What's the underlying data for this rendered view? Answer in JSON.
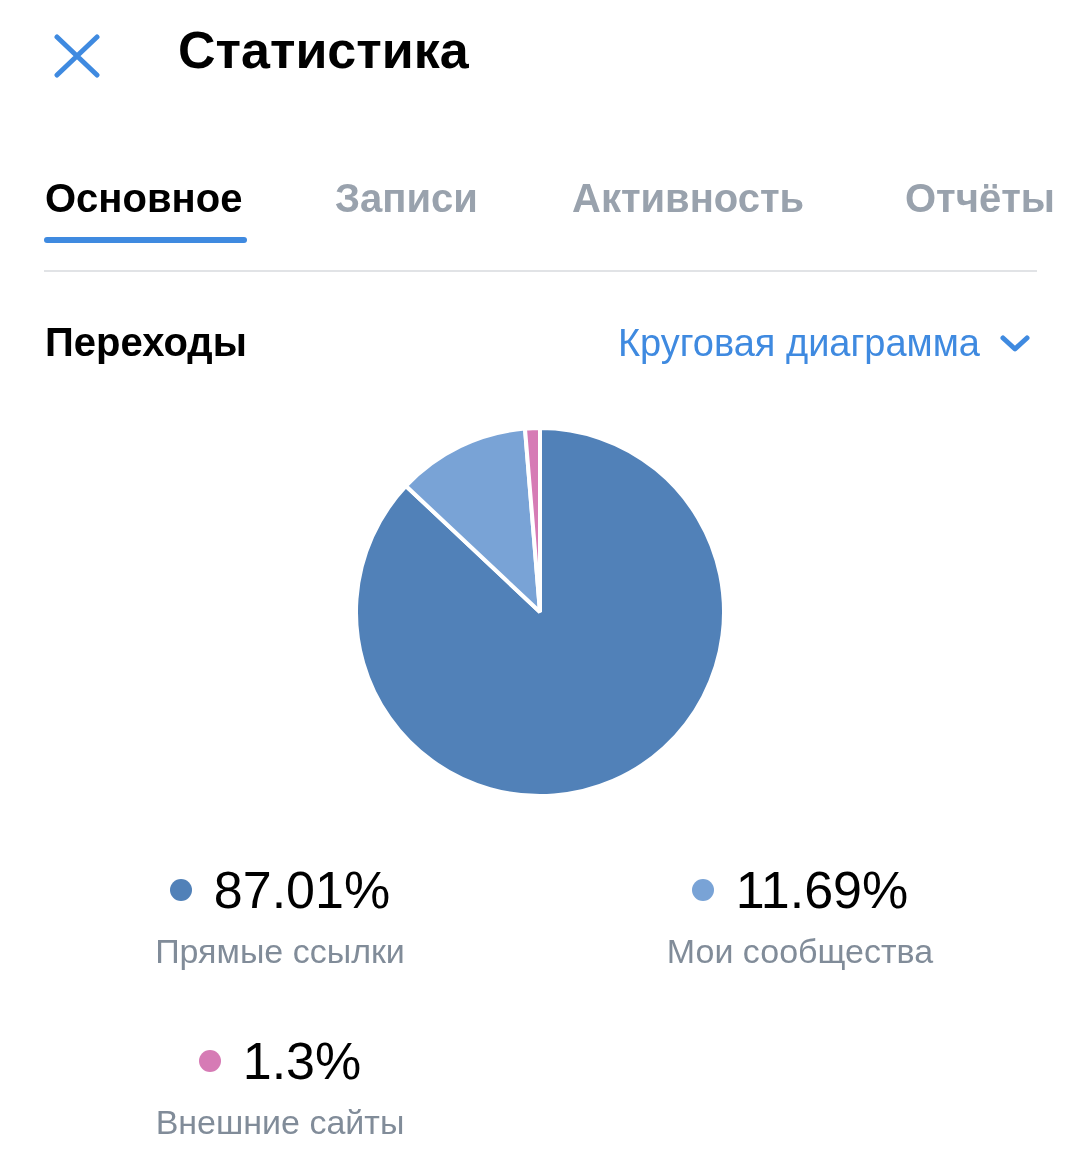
{
  "chart_data": {
    "type": "pie",
    "title": "Статистика",
    "subtitle": "Переходы",
    "annotations": [
      "Основное",
      "Записи",
      "Активность",
      "Отчёты",
      "Круговая диаграмма"
    ],
    "categories": [
      "Прямые ссылки",
      "Мои сообщества",
      "Внешние сайты"
    ],
    "values": [
      87.01,
      11.69,
      1.3
    ],
    "value_labels": [
      "87.01%",
      "11.69%",
      "1.3%"
    ],
    "colors": [
      "#5181b8",
      "#79a3d6",
      "#d67bb5"
    ],
    "legend": "bottom"
  }
}
